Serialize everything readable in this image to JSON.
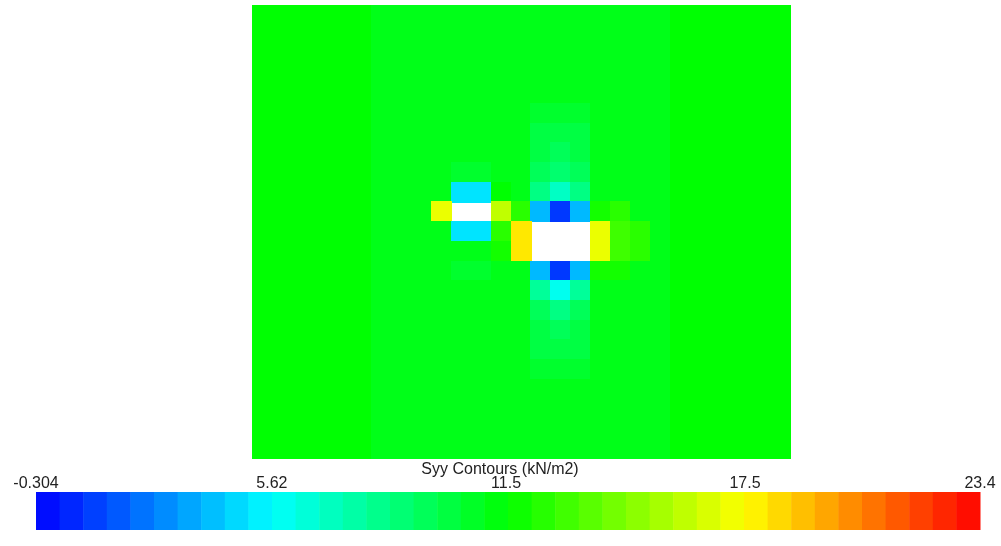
{
  "chart_data": {
    "type": "heatmap",
    "clabel": "Syy Contours (kN/m2)",
    "clim": [
      -0.304,
      23.4
    ],
    "cticks": [
      -0.304,
      5.62,
      11.5,
      17.5,
      23.4
    ],
    "tick_labels": false,
    "categories": [
      null,
      null,
      null,
      null,
      null,
      null,
      null,
      null,
      null,
      null,
      null,
      null,
      null,
      null,
      null,
      null,
      null,
      null,
      null,
      null,
      null,
      null,
      null,
      null,
      null,
      null,
      null
    ],
    "y_categories": [
      null,
      null,
      null,
      null,
      null,
      null,
      null,
      null,
      null,
      null,
      null,
      null,
      null,
      null,
      null,
      null,
      null,
      null,
      null,
      null,
      null,
      null,
      null
    ],
    "cells": [
      [
        11.5,
        11.5,
        11.5,
        11.5,
        11.5,
        11.5,
        11,
        11,
        11,
        11,
        11,
        11,
        11,
        11,
        11,
        11,
        11,
        11,
        11,
        11,
        11,
        11.5,
        11.5,
        11.5,
        11.5,
        11.5,
        11.5
      ],
      [
        11.5,
        11.5,
        11.5,
        11.5,
        11.5,
        11.5,
        11,
        11,
        11,
        11,
        11,
        11,
        11,
        11,
        11,
        11,
        11,
        11,
        11,
        11,
        11,
        11.5,
        11.5,
        11.5,
        11.5,
        11.5,
        11.5
      ],
      [
        11.5,
        11.5,
        11.5,
        11.5,
        11.5,
        11.5,
        11,
        11,
        11,
        11,
        11,
        11,
        11,
        11,
        11,
        11,
        11,
        11,
        11,
        11,
        11,
        11.5,
        11.5,
        11.5,
        11.5,
        11.5,
        11.5
      ],
      [
        11.5,
        11.5,
        11.5,
        11.5,
        11.5,
        11.5,
        11,
        11,
        11,
        11,
        11,
        11,
        11,
        11,
        11,
        11,
        11,
        11,
        11,
        11,
        11,
        11.5,
        11.5,
        11.5,
        11.5,
        11.5,
        11.5
      ],
      [
        11.5,
        11.5,
        11.5,
        11.5,
        11.5,
        11.5,
        11,
        11,
        11,
        11,
        11,
        11,
        11,
        11,
        11,
        11,
        11,
        11,
        11,
        11,
        11,
        11.5,
        11.5,
        11.5,
        11.5,
        11.5,
        11.5
      ],
      [
        11.5,
        11.5,
        11.5,
        11.5,
        11.5,
        11.5,
        11,
        11,
        11,
        11,
        11,
        11,
        11,
        11,
        10.5,
        10.5,
        10.5,
        11,
        11,
        11,
        11,
        11.5,
        11.5,
        11.5,
        11.5,
        11.5,
        11.5
      ],
      [
        11.5,
        11.5,
        11.5,
        11.5,
        11.5,
        11.5,
        11,
        11,
        11,
        11,
        11,
        11,
        11,
        11,
        10,
        10,
        10,
        11,
        11,
        11,
        11,
        11.5,
        11.5,
        11.5,
        11.5,
        11.5,
        11.5
      ],
      [
        11.5,
        11.5,
        11.5,
        11.5,
        11.5,
        11.5,
        11,
        11,
        11,
        11,
        11,
        11,
        11,
        11,
        10,
        9.5,
        10,
        11,
        11,
        11,
        11,
        11.5,
        11.5,
        11.5,
        11.5,
        11.5,
        11.5
      ],
      [
        11.5,
        11.5,
        11.5,
        11.5,
        11.5,
        11.5,
        11,
        11,
        11,
        11,
        10.5,
        10.5,
        11,
        11,
        9.5,
        9,
        9.5,
        11,
        11,
        11,
        11,
        11.5,
        11.5,
        11.5,
        11.5,
        11.5,
        11.5
      ],
      [
        11.5,
        11.5,
        11.5,
        11.5,
        11.5,
        11.5,
        11,
        11,
        11,
        11,
        5,
        5,
        11.5,
        11,
        8.5,
        7,
        8.5,
        11,
        11,
        11,
        11,
        11.5,
        11.5,
        11.5,
        11.5,
        11.5,
        11.5
      ],
      [
        11.5,
        11.5,
        11.5,
        11.5,
        11.5,
        11.5,
        11,
        11,
        11,
        17,
        null,
        null,
        16,
        12.5,
        4,
        1,
        4,
        12,
        12.5,
        11,
        11,
        11.5,
        11.5,
        11.5,
        11.5,
        11.5,
        11.5
      ],
      [
        11.5,
        11.5,
        11.5,
        11.5,
        11.5,
        11.5,
        11,
        11,
        11,
        11,
        5,
        5,
        12.5,
        18,
        null,
        null,
        null,
        17,
        13,
        12.5,
        11,
        11.5,
        11.5,
        11.5,
        11.5,
        11.5,
        11.5
      ],
      [
        11.5,
        11.5,
        11.5,
        11.5,
        11.5,
        11.5,
        11,
        11,
        11,
        11,
        11,
        11,
        12,
        18,
        null,
        null,
        null,
        17,
        13,
        12.5,
        11,
        11.5,
        11.5,
        11.5,
        11.5,
        11.5,
        11.5
      ],
      [
        11.5,
        11.5,
        11.5,
        11.5,
        11.5,
        11.5,
        11,
        11,
        11,
        11,
        10.5,
        10.5,
        11,
        11,
        4,
        1,
        4,
        12,
        12,
        11,
        11,
        11.5,
        11.5,
        11.5,
        11.5,
        11.5,
        11.5
      ],
      [
        11.5,
        11.5,
        11.5,
        11.5,
        11.5,
        11.5,
        11,
        11,
        11,
        11,
        11,
        11,
        11,
        11,
        8,
        6,
        8,
        11,
        11,
        11,
        11,
        11.5,
        11.5,
        11.5,
        11.5,
        11.5,
        11.5
      ],
      [
        11.5,
        11.5,
        11.5,
        11.5,
        11.5,
        11.5,
        11,
        11,
        11,
        11,
        11,
        11,
        11,
        11,
        9.5,
        8.5,
        9.5,
        11,
        11,
        11,
        11,
        11.5,
        11.5,
        11.5,
        11.5,
        11.5,
        11.5
      ],
      [
        11.5,
        11.5,
        11.5,
        11.5,
        11.5,
        11.5,
        11,
        11,
        11,
        11,
        11,
        11,
        11,
        11,
        10,
        9.5,
        10,
        11,
        11,
        11,
        11,
        11.5,
        11.5,
        11.5,
        11.5,
        11.5,
        11.5
      ],
      [
        11.5,
        11.5,
        11.5,
        11.5,
        11.5,
        11.5,
        11,
        11,
        11,
        11,
        11,
        11,
        11,
        11,
        10,
        10,
        10,
        11,
        11,
        11,
        11,
        11.5,
        11.5,
        11.5,
        11.5,
        11.5,
        11.5
      ],
      [
        11.5,
        11.5,
        11.5,
        11.5,
        11.5,
        11.5,
        11,
        11,
        11,
        11,
        11,
        11,
        11,
        11,
        10.5,
        10.5,
        10.5,
        11,
        11,
        11,
        11,
        11.5,
        11.5,
        11.5,
        11.5,
        11.5,
        11.5
      ],
      [
        11.5,
        11.5,
        11.5,
        11.5,
        11.5,
        11.5,
        11,
        11,
        11,
        11,
        11,
        11,
        11,
        11,
        11,
        11,
        11,
        11,
        11,
        11,
        11,
        11.5,
        11.5,
        11.5,
        11.5,
        11.5,
        11.5
      ],
      [
        11.5,
        11.5,
        11.5,
        11.5,
        11.5,
        11.5,
        11,
        11,
        11,
        11,
        11,
        11,
        11,
        11,
        11,
        11,
        11,
        11,
        11,
        11,
        11,
        11.5,
        11.5,
        11.5,
        11.5,
        11.5,
        11.5
      ],
      [
        11.5,
        11.5,
        11.5,
        11.5,
        11.5,
        11.5,
        11,
        11,
        11,
        11,
        11,
        11,
        11,
        11,
        11,
        11,
        11,
        11,
        11,
        11,
        11,
        11.5,
        11.5,
        11.5,
        11.5,
        11.5,
        11.5
      ],
      [
        11.5,
        11.5,
        11.5,
        11.5,
        11.5,
        11.5,
        11,
        11,
        11,
        11,
        11,
        11,
        11,
        11,
        11,
        11,
        11,
        11,
        11,
        11,
        11,
        11.5,
        11.5,
        11.5,
        11.5,
        11.5,
        11.5
      ]
    ]
  }
}
